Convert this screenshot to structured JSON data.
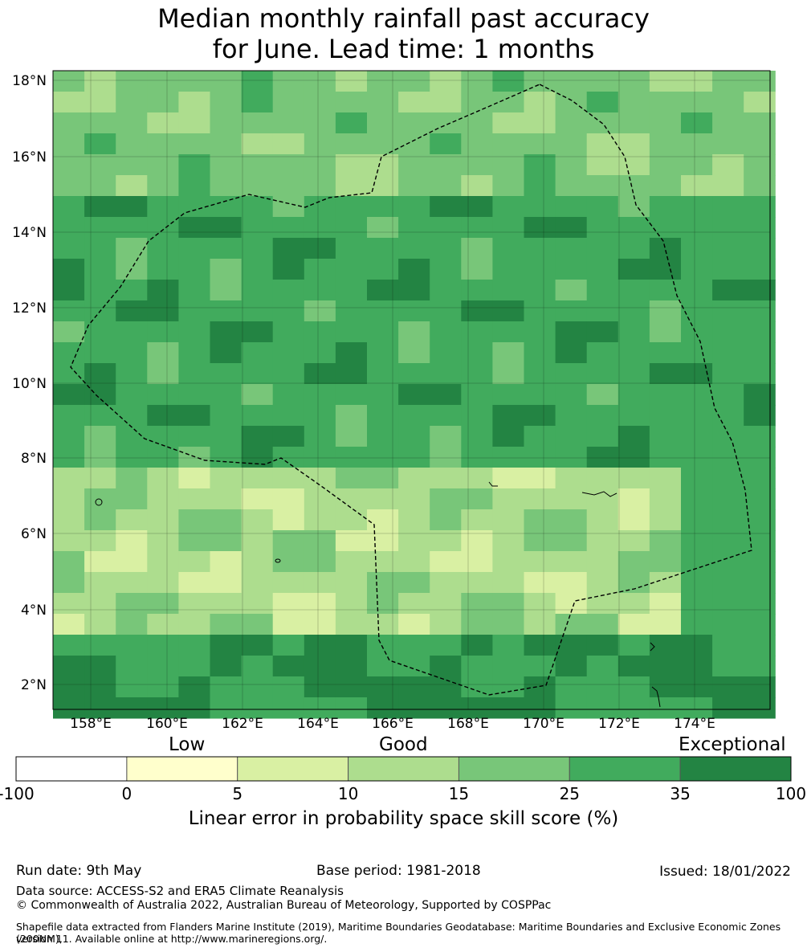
{
  "title": {
    "line1": "Median monthly rainfall past accuracy",
    "line2": "for June. Lead time: 1 months"
  },
  "map": {
    "lon_ticks": [
      "158°E",
      "160°E",
      "162°E",
      "164°E",
      "166°E",
      "168°E",
      "170°E",
      "172°E",
      "174°E"
    ],
    "lat_ticks": [
      "18°N",
      "16°N",
      "14°N",
      "12°N",
      "10°N",
      "8°N",
      "6°N",
      "4°N",
      "2°N"
    ],
    "boundary_style": "dashed black EEZ outline",
    "grid": true
  },
  "colorbar": {
    "categories": {
      "low": "Low",
      "good": "Good",
      "exceptional": "Exceptional"
    },
    "tick_labels": [
      "-100",
      "0",
      "5",
      "10",
      "15",
      "25",
      "35",
      "100"
    ],
    "colors": [
      "#ffffff",
      "#ffffcc",
      "#d9f0a3",
      "#addd8e",
      "#78c679",
      "#41ab5d",
      "#238443"
    ],
    "label": "Linear error in probability space skill score (%)"
  },
  "footer": {
    "run_date": "Run date: 9th May",
    "base_period": "Base period: 1981-2018",
    "issued": "Issued: 18/01/2022",
    "data_source": "Data source: ACCESS-S2 and ERA5 Climate Reanalysis",
    "copyright": "© Commonwealth of Australia 2022, Australian Bureau of Meteorology, Supported by COSPPac",
    "shapefile_line1": "Shapefile data extracted from Flanders Marine Institute (2019), Maritime Boundaries Geodatabase: Maritime Boundaries and Exclusive Economic Zones (200NM),",
    "shapefile_line2": "version 11. Available online at http://www.marineregions.org/."
  }
}
